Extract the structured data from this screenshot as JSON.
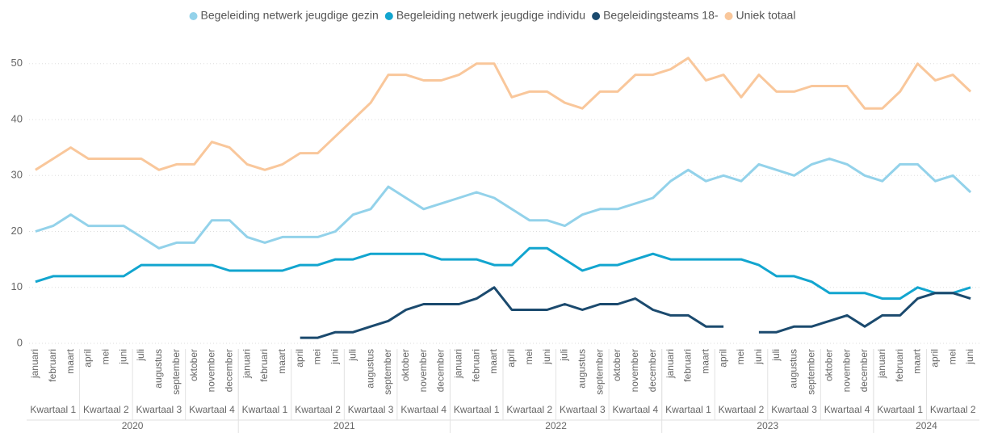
{
  "chart_data": {
    "type": "line",
    "categories": [
      "januari",
      "februari",
      "maart",
      "april",
      "mei",
      "juni",
      "juli",
      "augustus",
      "september",
      "oktober",
      "november",
      "december",
      "januari",
      "februari",
      "maart",
      "april",
      "mei",
      "juni",
      "juli",
      "augustus",
      "september",
      "oktober",
      "november",
      "december",
      "januari",
      "februari",
      "maart",
      "april",
      "mei",
      "juni",
      "juli",
      "augustus",
      "september",
      "oktober",
      "november",
      "december",
      "januari",
      "februari",
      "maart",
      "april",
      "mei",
      "juni",
      "juli",
      "augustus",
      "september",
      "oktober",
      "november",
      "december",
      "januari",
      "februari",
      "maart",
      "april",
      "mei",
      "juni"
    ],
    "quarters": [
      "Kwartaal 1",
      "Kwartaal 1",
      "Kwartaal 1",
      "Kwartaal 2",
      "Kwartaal 2",
      "Kwartaal 2",
      "Kwartaal 3",
      "Kwartaal 3",
      "Kwartaal 3",
      "Kwartaal 4",
      "Kwartaal 4",
      "Kwartaal 4",
      "Kwartaal 1",
      "Kwartaal 1",
      "Kwartaal 1",
      "Kwartaal 2",
      "Kwartaal 2",
      "Kwartaal 2",
      "Kwartaal 3",
      "Kwartaal 3",
      "Kwartaal 3",
      "Kwartaal 4",
      "Kwartaal 4",
      "Kwartaal 4",
      "Kwartaal 1",
      "Kwartaal 1",
      "Kwartaal 1",
      "Kwartaal 2",
      "Kwartaal 2",
      "Kwartaal 2",
      "Kwartaal 3",
      "Kwartaal 3",
      "Kwartaal 3",
      "Kwartaal 4",
      "Kwartaal 4",
      "Kwartaal 4",
      "Kwartaal 1",
      "Kwartaal 1",
      "Kwartaal 1",
      "Kwartaal 2",
      "Kwartaal 2",
      "Kwartaal 2",
      "Kwartaal 3",
      "Kwartaal 3",
      "Kwartaal 3",
      "Kwartaal 4",
      "Kwartaal 4",
      "Kwartaal 4",
      "Kwartaal 1",
      "Kwartaal 1",
      "Kwartaal 1",
      "Kwartaal 2",
      "Kwartaal 2",
      "Kwartaal 2"
    ],
    "years": [
      "2020",
      "2020",
      "2020",
      "2020",
      "2020",
      "2020",
      "2020",
      "2020",
      "2020",
      "2020",
      "2020",
      "2020",
      "2021",
      "2021",
      "2021",
      "2021",
      "2021",
      "2021",
      "2021",
      "2021",
      "2021",
      "2021",
      "2021",
      "2021",
      "2022",
      "2022",
      "2022",
      "2022",
      "2022",
      "2022",
      "2022",
      "2022",
      "2022",
      "2022",
      "2022",
      "2022",
      "2023",
      "2023",
      "2023",
      "2023",
      "2023",
      "2023",
      "2023",
      "2023",
      "2023",
      "2023",
      "2023",
      "2023",
      "2024",
      "2024",
      "2024",
      "2024",
      "2024",
      "2024"
    ],
    "series": [
      {
        "name": "Begeleiding netwerk jeugdige gezin",
        "color": "#93d2ea",
        "values": [
          20,
          21,
          23,
          21,
          21,
          21,
          19,
          17,
          18,
          18,
          22,
          22,
          19,
          18,
          19,
          19,
          19,
          20,
          23,
          24,
          28,
          26,
          24,
          25,
          26,
          27,
          26,
          24,
          22,
          22,
          21,
          23,
          24,
          24,
          25,
          26,
          29,
          31,
          29,
          30,
          29,
          32,
          31,
          30,
          32,
          33,
          32,
          30,
          29,
          32,
          32,
          29,
          30,
          27
        ]
      },
      {
        "name": "Begeleiding netwerk jeugdige individu",
        "color": "#12a5cf",
        "values": [
          11,
          12,
          12,
          12,
          12,
          12,
          14,
          14,
          14,
          14,
          14,
          13,
          13,
          13,
          13,
          14,
          14,
          15,
          15,
          16,
          16,
          16,
          16,
          15,
          15,
          15,
          14,
          14,
          17,
          17,
          15,
          13,
          14,
          14,
          15,
          16,
          15,
          15,
          15,
          15,
          15,
          14,
          12,
          12,
          11,
          9,
          9,
          9,
          8,
          8,
          10,
          9,
          9,
          10
        ]
      },
      {
        "name": "Begeleidingsteams 18-",
        "color": "#1b4a6e",
        "values": [
          null,
          null,
          null,
          null,
          null,
          null,
          null,
          null,
          null,
          null,
          null,
          null,
          null,
          null,
          null,
          1,
          1,
          2,
          2,
          3,
          4,
          6,
          7,
          7,
          7,
          8,
          10,
          6,
          6,
          6,
          7,
          6,
          7,
          7,
          8,
          6,
          5,
          5,
          3,
          3,
          null,
          2,
          2,
          3,
          3,
          4,
          5,
          3,
          5,
          5,
          8,
          9,
          9,
          8
        ]
      },
      {
        "name": "Uniek totaal",
        "color": "#f9c79b",
        "values": [
          31,
          33,
          35,
          33,
          33,
          33,
          33,
          31,
          32,
          32,
          36,
          35,
          32,
          31,
          32,
          34,
          34,
          37,
          40,
          43,
          48,
          48,
          47,
          47,
          48,
          50,
          50,
          44,
          45,
          45,
          43,
          42,
          45,
          45,
          48,
          48,
          49,
          51,
          47,
          48,
          44,
          48,
          45,
          45,
          46,
          46,
          46,
          42,
          42,
          45,
          50,
          47,
          48,
          45
        ]
      }
    ],
    "ylim": [
      0,
      53
    ],
    "yticks": [
      0,
      10,
      20,
      30,
      40,
      50
    ],
    "grid": true,
    "legend": "top"
  }
}
